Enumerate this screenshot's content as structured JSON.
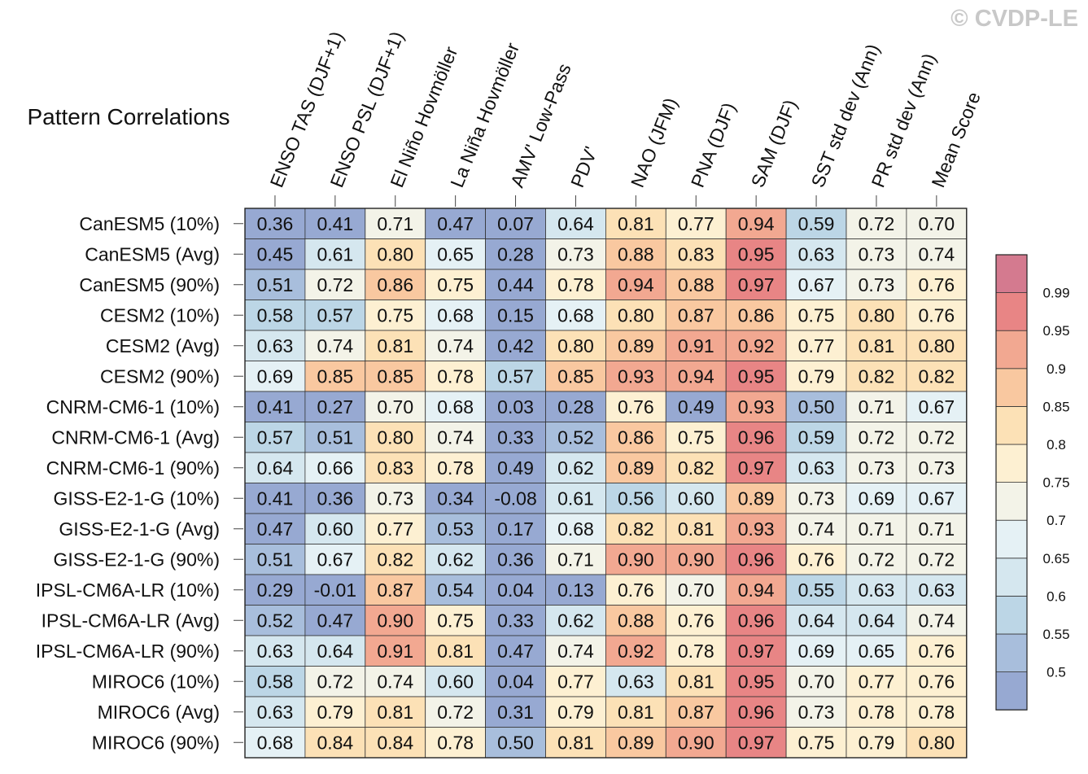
{
  "watermark": "© CVDP-LE",
  "chart_data": {
    "type": "heatmap",
    "title": "Pattern Correlations",
    "columns": [
      "ENSO TAS (DJF+1)",
      "ENSO PSL (DJF+1)",
      "El Niño Hovmöller",
      "La Niña Hovmöller",
      "AMV' Low-Pass",
      "PDV'",
      "NAO (JFM)",
      "PNA (DJF)",
      "SAM (DJF)",
      "SST std dev (Ann)",
      "PR std dev (Ann)",
      "Mean Score"
    ],
    "rows": [
      "CanESM5 (10%)",
      "CanESM5 (Avg)",
      "CanESM5 (90%)",
      "CESM2 (10%)",
      "CESM2 (Avg)",
      "CESM2 (90%)",
      "CNRM-CM6-1 (10%)",
      "CNRM-CM6-1 (Avg)",
      "CNRM-CM6-1 (90%)",
      "GISS-E2-1-G (10%)",
      "GISS-E2-1-G (Avg)",
      "GISS-E2-1-G (90%)",
      "IPSL-CM6A-LR (10%)",
      "IPSL-CM6A-LR (Avg)",
      "IPSL-CM6A-LR (90%)",
      "MIROC6 (10%)",
      "MIROC6 (Avg)",
      "MIROC6 (90%)"
    ],
    "values": [
      [
        "0.36",
        "0.41",
        "0.71",
        "0.47",
        "0.07",
        "0.64",
        "0.81",
        "0.77",
        "0.94",
        "0.59",
        "0.72",
        "0.70"
      ],
      [
        "0.45",
        "0.61",
        "0.80",
        "0.65",
        "0.28",
        "0.73",
        "0.88",
        "0.83",
        "0.95",
        "0.63",
        "0.73",
        "0.74"
      ],
      [
        "0.51",
        "0.72",
        "0.86",
        "0.75",
        "0.44",
        "0.78",
        "0.94",
        "0.88",
        "0.97",
        "0.67",
        "0.73",
        "0.76"
      ],
      [
        "0.58",
        "0.57",
        "0.75",
        "0.68",
        "0.15",
        "0.68",
        "0.80",
        "0.87",
        "0.86",
        "0.75",
        "0.80",
        "0.76"
      ],
      [
        "0.63",
        "0.74",
        "0.81",
        "0.74",
        "0.42",
        "0.80",
        "0.89",
        "0.91",
        "0.92",
        "0.77",
        "0.81",
        "0.80"
      ],
      [
        "0.69",
        "0.85",
        "0.85",
        "0.78",
        "0.57",
        "0.85",
        "0.93",
        "0.94",
        "0.95",
        "0.79",
        "0.82",
        "0.82"
      ],
      [
        "0.41",
        "0.27",
        "0.70",
        "0.68",
        "0.03",
        "0.28",
        "0.76",
        "0.49",
        "0.93",
        "0.50",
        "0.71",
        "0.67"
      ],
      [
        "0.57",
        "0.51",
        "0.80",
        "0.74",
        "0.33",
        "0.52",
        "0.86",
        "0.75",
        "0.96",
        "0.59",
        "0.72",
        "0.72"
      ],
      [
        "0.64",
        "0.66",
        "0.83",
        "0.78",
        "0.49",
        "0.62",
        "0.89",
        "0.82",
        "0.97",
        "0.63",
        "0.73",
        "0.73"
      ],
      [
        "0.41",
        "0.36",
        "0.73",
        "0.34",
        "-0.08",
        "0.61",
        "0.56",
        "0.60",
        "0.89",
        "0.73",
        "0.69",
        "0.67"
      ],
      [
        "0.47",
        "0.60",
        "0.77",
        "0.53",
        "0.17",
        "0.68",
        "0.82",
        "0.81",
        "0.93",
        "0.74",
        "0.71",
        "0.71"
      ],
      [
        "0.51",
        "0.67",
        "0.82",
        "0.62",
        "0.36",
        "0.71",
        "0.90",
        "0.90",
        "0.96",
        "0.76",
        "0.72",
        "0.72"
      ],
      [
        "0.29",
        "-0.01",
        "0.87",
        "0.54",
        "0.04",
        "0.13",
        "0.76",
        "0.70",
        "0.94",
        "0.55",
        "0.63",
        "0.63"
      ],
      [
        "0.52",
        "0.47",
        "0.90",
        "0.75",
        "0.33",
        "0.62",
        "0.88",
        "0.76",
        "0.96",
        "0.64",
        "0.64",
        "0.74"
      ],
      [
        "0.63",
        "0.64",
        "0.91",
        "0.81",
        "0.47",
        "0.74",
        "0.92",
        "0.78",
        "0.97",
        "0.69",
        "0.65",
        "0.76"
      ],
      [
        "0.58",
        "0.72",
        "0.74",
        "0.60",
        "0.04",
        "0.77",
        "0.63",
        "0.81",
        "0.95",
        "0.70",
        "0.77",
        "0.76"
      ],
      [
        "0.63",
        "0.79",
        "0.81",
        "0.72",
        "0.31",
        "0.79",
        "0.81",
        "0.87",
        "0.96",
        "0.73",
        "0.78",
        "0.78"
      ],
      [
        "0.68",
        "0.84",
        "0.84",
        "0.78",
        "0.50",
        "0.81",
        "0.89",
        "0.90",
        "0.97",
        "0.75",
        "0.79",
        "0.80"
      ]
    ],
    "colorbar": {
      "levels": [
        "0.5",
        "0.55",
        "0.6",
        "0.65",
        "0.7",
        "0.75",
        "0.8",
        "0.85",
        "0.9",
        "0.95",
        "0.99"
      ],
      "colors": [
        "#97a9d2",
        "#a8bedc",
        "#bcd6e6",
        "#d5e7ef",
        "#e5f1f5",
        "#f3f3e8",
        "#fdf0d2",
        "#fce1b6",
        "#f9c8a0",
        "#f2a891",
        "#e88585",
        "#d47a8f"
      ]
    }
  }
}
